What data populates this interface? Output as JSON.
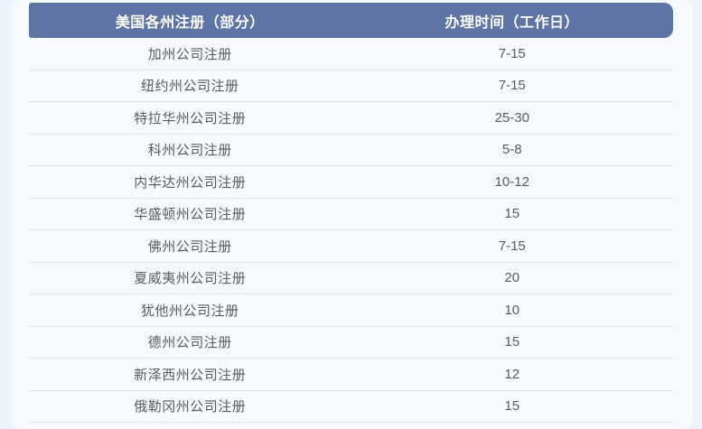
{
  "table": {
    "headers": {
      "state_col": "美国各州注册（部分）",
      "time_col": "办理时间（工作日）"
    },
    "rows": [
      {
        "state": "加州公司注册",
        "time": "7-15"
      },
      {
        "state": "纽约州公司注册",
        "time": "7-15"
      },
      {
        "state": "特拉华州公司注册",
        "time": "25-30"
      },
      {
        "state": "科州公司注册",
        "time": "5-8"
      },
      {
        "state": "内华达州公司注册",
        "time": "10-12"
      },
      {
        "state": "华盛顿州公司注册",
        "time": "15"
      },
      {
        "state": "佛州公司注册",
        "time": "7-15"
      },
      {
        "state": "夏威夷州公司注册",
        "time": "20"
      },
      {
        "state": "犹他州公司注册",
        "time": "10"
      },
      {
        "state": "德州公司注册",
        "time": "15"
      },
      {
        "state": "新泽西州公司注册",
        "time": "12"
      },
      {
        "state": "俄勒冈州公司注册",
        "time": "15"
      }
    ]
  },
  "colors": {
    "page_bg": "#ecf2fa",
    "card_bg": "#f7fafd",
    "header_bg": "#5d74a4",
    "header_text": "#ffffff",
    "row_text": "#585b60",
    "divider": "#dbe5f1"
  }
}
